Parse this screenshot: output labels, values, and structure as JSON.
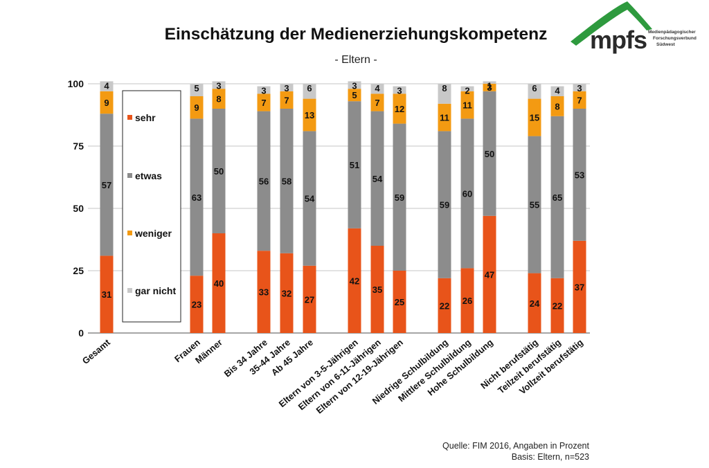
{
  "header": {
    "title": "Einschätzung der Medienerziehungskompetenz",
    "subtitle": "- Eltern -"
  },
  "logo": {
    "name": "mpfs",
    "lines": [
      "Medienpädagogischer",
      "Forschungsverbund",
      "Südwest"
    ],
    "color": "#2e9a3e"
  },
  "footer": {
    "source": "Quelle: FIM 2016, Angaben in Prozent",
    "basis": "Basis: Eltern, n=523"
  },
  "chart_data": {
    "type": "bar",
    "stacked": true,
    "title": "Einschätzung der Medienerziehungskompetenz",
    "subtitle": "- Eltern -",
    "xlabel": "",
    "ylabel": "",
    "ylim": [
      0,
      100
    ],
    "yticks": [
      0,
      25,
      50,
      75,
      100
    ],
    "grid": true,
    "legend_position": "inside-left",
    "categories": [
      "Gesamt",
      "Frauen",
      "Männer",
      "Bis 34 Jahre",
      "35-44 Jahre",
      "Ab 45 Jahre",
      "Eltern von 3-5-Jährigen",
      "Eltern von 6-11-Jährigen",
      "Eltern von 12-19-Jährigen",
      "Niedrige Schulbildung",
      "Mittlere Schulbildung",
      "Hohe Schulbildung",
      "Nicht berufstätig",
      "Teilzeit berufstätig",
      "Vollzeit berufstätig"
    ],
    "groups": [
      [
        "Gesamt"
      ],
      [
        "Frauen",
        "Männer"
      ],
      [
        "Bis 34 Jahre",
        "35-44 Jahre",
        "Ab 45 Jahre"
      ],
      [
        "Eltern von 3-5-Jährigen",
        "Eltern von 6-11-Jährigen",
        "Eltern von 12-19-Jährigen"
      ],
      [
        "Niedrige Schulbildung",
        "Mittlere Schulbildung",
        "Hohe Schulbildung"
      ],
      [
        "Nicht berufstätig",
        "Teilzeit berufstätig",
        "Vollzeit berufstätig"
      ]
    ],
    "series": [
      {
        "name": "sehr",
        "color": "#e8541a",
        "values": [
          31,
          23,
          40,
          33,
          32,
          27,
          42,
          35,
          25,
          22,
          26,
          47,
          24,
          22,
          37
        ]
      },
      {
        "name": "etwas",
        "color": "#8c8c8c",
        "values": [
          57,
          63,
          50,
          56,
          58,
          54,
          51,
          54,
          59,
          59,
          60,
          50,
          55,
          65,
          53
        ]
      },
      {
        "name": "weniger",
        "color": "#f39a12",
        "values": [
          9,
          9,
          8,
          7,
          7,
          13,
          5,
          7,
          12,
          11,
          11,
          3,
          15,
          8,
          7
        ]
      },
      {
        "name": "gar nicht",
        "color": "#c8c8c8",
        "values": [
          4,
          5,
          3,
          3,
          3,
          6,
          3,
          4,
          3,
          8,
          2,
          1,
          6,
          4,
          3
        ]
      }
    ]
  }
}
